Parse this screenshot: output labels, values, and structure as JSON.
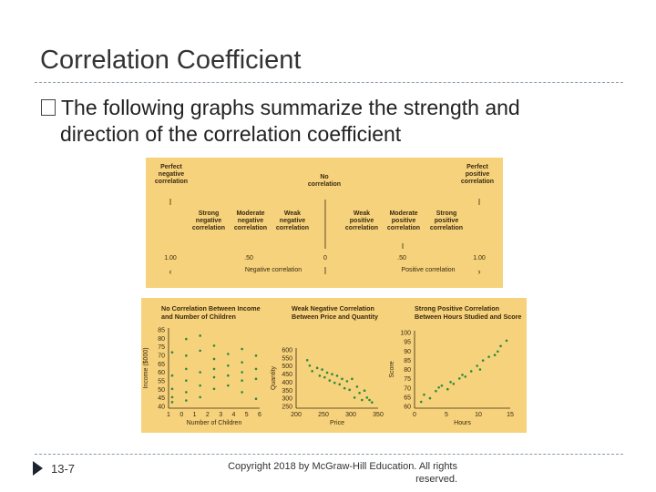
{
  "slide": {
    "title": "Correlation Coefficient",
    "bullet_line1": "The following graphs summarize the strength and",
    "bullet_line2": "direction of the correlation coefficient",
    "slide_number": "13-7",
    "copyright_line1": "Copyright  2018 by McGraw-Hill Education.  All rights",
    "copyright_line2": "reserved."
  },
  "scale": {
    "perfect_neg": "Perfect\nnegative\ncorrelation",
    "no_corr": "No\ncorrelation",
    "perfect_pos": "Perfect\npositive\ncorrelation",
    "strong_neg": "Strong\nnegative\ncorrelation",
    "moderate_neg": "Moderate\nnegative\ncorrelation",
    "weak_neg": "Weak\nnegative\ncorrelation",
    "weak_pos": "Weak\npositive\ncorrelation",
    "moderate_pos": "Moderate\npositive\ncorrelation",
    "strong_pos": "Strong\npositive\ncorrelation",
    "val_neg_100": "1.00",
    "val_neg_50": ".50",
    "val_0": "0",
    "val_pos_50": ".50",
    "val_pos_100": "1.00",
    "negative_label": "Negative correlation",
    "positive_label": "Positive correlation"
  },
  "colors": {
    "panel_bg": "#f6d27c",
    "point": "#2a8a3e",
    "rule": "#8a9aa6"
  },
  "chart_data": [
    {
      "type": "scatter",
      "title": "No Correlation Between Income\nand Number of Children",
      "xlabel": "Number of Children",
      "ylabel": "Income ($000)",
      "x_ticks": [
        "1",
        "0",
        "1",
        "2",
        "3",
        "4",
        "5",
        "6"
      ],
      "y_ticks": [
        "85",
        "80",
        "75",
        "70",
        "65",
        "60",
        "55",
        "50",
        "45",
        "40"
      ],
      "xlim": [
        0,
        6
      ],
      "ylim": [
        40,
        85
      ],
      "points": [
        [
          0,
          72
        ],
        [
          0,
          58
        ],
        [
          0,
          50
        ],
        [
          0,
          45
        ],
        [
          0,
          42
        ],
        [
          1,
          80
        ],
        [
          1,
          70
        ],
        [
          1,
          62
        ],
        [
          1,
          55
        ],
        [
          1,
          48
        ],
        [
          1,
          43
        ],
        [
          2,
          82
        ],
        [
          2,
          73
        ],
        [
          2,
          60
        ],
        [
          2,
          52
        ],
        [
          2,
          45
        ],
        [
          3,
          76
        ],
        [
          3,
          68
        ],
        [
          3,
          62
        ],
        [
          3,
          57
        ],
        [
          3,
          50
        ],
        [
          4,
          71
        ],
        [
          4,
          64
        ],
        [
          4,
          58
        ],
        [
          4,
          52
        ],
        [
          5,
          74
        ],
        [
          5,
          66
        ],
        [
          5,
          60
        ],
        [
          5,
          55
        ],
        [
          5,
          48
        ],
        [
          6,
          70
        ],
        [
          6,
          62
        ],
        [
          6,
          56
        ],
        [
          6,
          44
        ]
      ]
    },
    {
      "type": "scatter",
      "title": "Weak Negative Correlation\nBetween Price and Quantity",
      "xlabel": "Price",
      "ylabel": "Quantity",
      "x_ticks": [
        "200",
        "250",
        "300",
        "350"
      ],
      "y_ticks": [
        "600",
        "550",
        "500",
        "450",
        "400",
        "350",
        "300",
        "250"
      ],
      "xlim": [
        200,
        350
      ],
      "ylim": [
        250,
        600
      ],
      "points": [
        [
          215,
          540
        ],
        [
          220,
          505
        ],
        [
          225,
          470
        ],
        [
          235,
          490
        ],
        [
          240,
          440
        ],
        [
          245,
          480
        ],
        [
          250,
          430
        ],
        [
          255,
          460
        ],
        [
          260,
          410
        ],
        [
          265,
          450
        ],
        [
          270,
          395
        ],
        [
          275,
          440
        ],
        [
          280,
          385
        ],
        [
          285,
          420
        ],
        [
          290,
          360
        ],
        [
          295,
          405
        ],
        [
          300,
          350
        ],
        [
          305,
          420
        ],
        [
          310,
          300
        ],
        [
          315,
          370
        ],
        [
          320,
          330
        ],
        [
          325,
          285
        ],
        [
          330,
          345
        ],
        [
          335,
          300
        ],
        [
          340,
          285
        ],
        [
          345,
          270
        ]
      ]
    },
    {
      "type": "scatter",
      "title": "Strong Positive Correlation\nBetween Hours Studied and Score",
      "xlabel": "Hours",
      "ylabel": "Score",
      "x_ticks": [
        "0",
        "5",
        "10",
        "15"
      ],
      "y_ticks": [
        "100",
        "95",
        "90",
        "85",
        "80",
        "75",
        "70",
        "65",
        "60"
      ],
      "xlim": [
        0,
        15
      ],
      "ylim": [
        60,
        100
      ],
      "points": [
        [
          0.5,
          62
        ],
        [
          1,
          66
        ],
        [
          2,
          64
        ],
        [
          3,
          68
        ],
        [
          3.5,
          70
        ],
        [
          4,
          71
        ],
        [
          5,
          69
        ],
        [
          5.5,
          73
        ],
        [
          6,
          72
        ],
        [
          7,
          75
        ],
        [
          7.5,
          77
        ],
        [
          8,
          76
        ],
        [
          9,
          79
        ],
        [
          10,
          82
        ],
        [
          10.5,
          80
        ],
        [
          11,
          85
        ],
        [
          12,
          87
        ],
        [
          13,
          88
        ],
        [
          13.5,
          90
        ],
        [
          14,
          93
        ],
        [
          15,
          96
        ]
      ]
    }
  ]
}
